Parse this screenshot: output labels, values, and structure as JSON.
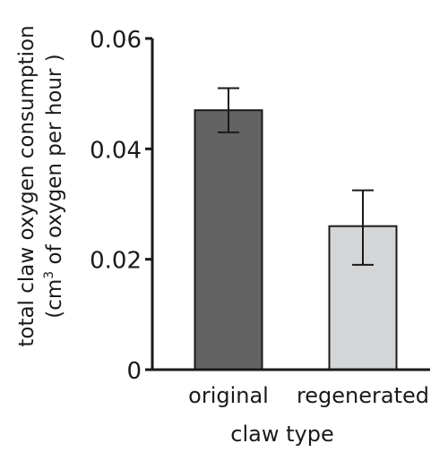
{
  "chart_data": {
    "type": "bar",
    "categories": [
      "original",
      "regenerated"
    ],
    "values": [
      0.047,
      0.026
    ],
    "errors": [
      {
        "low": 0.043,
        "high": 0.051
      },
      {
        "low": 0.019,
        "high": 0.0325
      }
    ],
    "bar_colors": [
      "#636363",
      "#d4d5d7"
    ],
    "xlabel": "claw type",
    "ylabel_line1": "total claw oxygen consumption",
    "ylabel_line2_pre": "(cm",
    "ylabel_line2_sup": "3",
    "ylabel_line2_post": " of oxygen per hour )",
    "ylim": [
      0,
      0.06
    ],
    "yticks": [
      0,
      0.02,
      0.04,
      0.06
    ],
    "ytick_labels": [
      "0",
      "0.02",
      "0.04",
      "0.06"
    ],
    "grid": false
  }
}
